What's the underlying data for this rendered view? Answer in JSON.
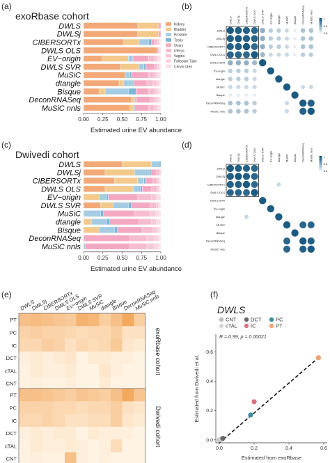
{
  "panels": {
    "a": {
      "letter": "(a)",
      "title": "exoRbase cohort"
    },
    "b": {
      "letter": "(b)"
    },
    "c": {
      "letter": "(c)",
      "title": "Dwivedi cohort"
    },
    "d": {
      "letter": "(d)"
    },
    "e": {
      "letter": "(e)"
    },
    "f": {
      "letter": "(f)"
    }
  },
  "colors": {
    "Kidney": "#f2a977",
    "Bladder": "#f3c98c",
    "Prostate": "#a6cce3",
    "Testis": "#7ab6d9",
    "Ovary": "#f4a9c2",
    "Uterus": "#f6bcd0",
    "Vagina": "#f7c8d8",
    "Fallopian Tube": "#f9d3e0",
    "Cervix Uteri": "#fbdde8",
    "corr_dark": "#1d5a80",
    "corr_light": "#e4eef5"
  },
  "chart_data": [
    {
      "panel": "a",
      "type": "bar",
      "stacked": "horizontal",
      "title": "exoRbase cohort",
      "xlabel": "Estimated urine EV abundance",
      "x_ticks": [
        "0.00",
        "0.25",
        "0.50",
        "0.75",
        "1.00"
      ],
      "xlim": [
        0,
        1
      ],
      "categories": [
        "DWLS",
        "DWLSj",
        "CIBERSORTx",
        "DWLS OLS",
        "EV−origin",
        "DWLS SVR",
        "MuSiC",
        "dtangle",
        "Bisque",
        "DeconRNASeq",
        "MuSiC nnls"
      ],
      "legend": [
        "Kidney",
        "Bladder",
        "Prostate",
        "Testis",
        "Ovary",
        "Uterus",
        "Vagina",
        "Fallopian Tube",
        "Cervix Uteri"
      ],
      "series": [
        {
          "name": "Kidney",
          "values": [
            0.7,
            0.7,
            0.52,
            0.95,
            0.24,
            0.48,
            0.54,
            0.46,
            0.2,
            0.62,
            0.6
          ]
        },
        {
          "name": "Bladder",
          "values": [
            0.27,
            0.27,
            0.2,
            0.0,
            0.34,
            0.24,
            0.0,
            0.06,
            0.08,
            0.04,
            0.04
          ]
        },
        {
          "name": "Prostate",
          "values": [
            0.0,
            0.0,
            0.12,
            0.0,
            0.06,
            0.06,
            0.06,
            0.1,
            0.3,
            0.02,
            0.02
          ]
        },
        {
          "name": "Testis",
          "values": [
            0.0,
            0.0,
            0.04,
            0.0,
            0.0,
            0.02,
            0.02,
            0.02,
            0.1,
            0.0,
            0.0
          ]
        },
        {
          "name": "Ovary",
          "values": [
            0.03,
            0.03,
            0.04,
            0.02,
            0.2,
            0.12,
            0.22,
            0.18,
            0.16,
            0.18,
            0.18
          ]
        },
        {
          "name": "Uterus",
          "values": [
            0.0,
            0.0,
            0.04,
            0.01,
            0.08,
            0.04,
            0.08,
            0.08,
            0.08,
            0.06,
            0.08
          ]
        },
        {
          "name": "Vagina",
          "values": [
            0.0,
            0.0,
            0.02,
            0.01,
            0.04,
            0.02,
            0.04,
            0.05,
            0.04,
            0.04,
            0.04
          ]
        },
        {
          "name": "Fallopian Tube",
          "values": [
            0.0,
            0.0,
            0.01,
            0.01,
            0.02,
            0.01,
            0.02,
            0.03,
            0.02,
            0.02,
            0.02
          ]
        },
        {
          "name": "Cervix Uteri",
          "values": [
            0.0,
            0.0,
            0.01,
            0.0,
            0.02,
            0.01,
            0.02,
            0.02,
            0.02,
            0.02,
            0.02
          ]
        }
      ]
    },
    {
      "panel": "c",
      "type": "bar",
      "stacked": "horizontal",
      "title": "Dwivedi cohort",
      "xlabel": "Estimated urine EV abundance",
      "x_ticks": [
        "0.00",
        "0.25",
        "0.50",
        "0.75",
        "1.00"
      ],
      "xlim": [
        0,
        1
      ],
      "categories": [
        "DWLS",
        "DWLSj",
        "CIBERSORTx",
        "DWLS OLS",
        "EV−origin",
        "DWLS SVR",
        "MuSiC",
        "dtangle",
        "Bisque",
        "DeconRNASeq",
        "MuSiC nnls"
      ],
      "series": [
        {
          "name": "Kidney",
          "values": [
            0.5,
            0.28,
            0.4,
            0.28,
            0.0,
            0.22,
            0.0,
            0.0,
            0.0,
            0.0,
            0.0
          ]
        },
        {
          "name": "Bladder",
          "values": [
            0.38,
            0.38,
            0.3,
            0.36,
            0.2,
            0.16,
            0.0,
            0.1,
            0.2,
            0.0,
            0.0
          ]
        },
        {
          "name": "Prostate",
          "values": [
            0.1,
            0.2,
            0.08,
            0.1,
            0.1,
            0.2,
            0.22,
            0.2,
            0.2,
            0.0,
            0.02
          ]
        },
        {
          "name": "Testis",
          "values": [
            0.02,
            0.02,
            0.02,
            0.02,
            0.02,
            0.04,
            0.04,
            0.04,
            0.04,
            0.0,
            0.0
          ]
        },
        {
          "name": "Ovary",
          "values": [
            0.0,
            0.06,
            0.1,
            0.12,
            0.38,
            0.24,
            0.4,
            0.38,
            0.32,
            0.6,
            0.58
          ]
        },
        {
          "name": "Uterus",
          "values": [
            0.0,
            0.04,
            0.06,
            0.08,
            0.18,
            0.08,
            0.2,
            0.16,
            0.14,
            0.22,
            0.22
          ]
        },
        {
          "name": "Vagina",
          "values": [
            0.0,
            0.02,
            0.02,
            0.02,
            0.06,
            0.03,
            0.07,
            0.06,
            0.05,
            0.1,
            0.1
          ]
        },
        {
          "name": "Fallopian Tube",
          "values": [
            0.0,
            0.0,
            0.01,
            0.01,
            0.03,
            0.02,
            0.04,
            0.03,
            0.03,
            0.05,
            0.05
          ]
        },
        {
          "name": "Cervix Uteri",
          "values": [
            0.0,
            0.0,
            0.01,
            0.01,
            0.03,
            0.01,
            0.03,
            0.03,
            0.02,
            0.03,
            0.03
          ]
        }
      ]
    },
    {
      "panel": "b",
      "type": "heatmap",
      "labels": [
        "DWLS",
        "DWLSj",
        "CIBERSORTx",
        "DWLS OLS",
        "DWLS SVR",
        "EV-origin",
        "dtangle",
        "MuSiC",
        "Bisque",
        "DeconRNASeq",
        "MuSiC nnls"
      ],
      "scale_ticks": [
        "1",
        "0.8",
        "0.6"
      ],
      "values": [
        [
          1.0,
          0.98,
          0.97,
          0.95,
          0.6,
          0.45,
          0.45,
          0.4,
          0.25,
          0.5,
          0.5
        ],
        [
          0.98,
          1.0,
          0.97,
          0.95,
          0.6,
          0.45,
          0.45,
          0.4,
          0.25,
          0.5,
          0.5
        ],
        [
          0.97,
          0.97,
          1.0,
          0.93,
          0.6,
          0.45,
          0.45,
          0.4,
          0.2,
          0.5,
          0.5
        ],
        [
          0.95,
          0.95,
          0.93,
          1.0,
          0.55,
          0.4,
          0.4,
          0.4,
          0.2,
          0.45,
          0.45
        ],
        [
          0.6,
          0.6,
          0.6,
          0.55,
          1.0,
          0.0,
          0.0,
          0.0,
          0.0,
          0.0,
          0.0
        ],
        [
          0.45,
          0.45,
          0.45,
          0.4,
          0.0,
          1.0,
          0.0,
          0.0,
          0.0,
          0.0,
          0.0
        ],
        [
          0.45,
          0.45,
          0.45,
          0.4,
          0.0,
          0.0,
          1.0,
          0.0,
          0.0,
          0.0,
          0.0
        ],
        [
          0.4,
          0.4,
          0.4,
          0.4,
          0.0,
          0.0,
          0.0,
          1.0,
          0.0,
          0.4,
          0.4
        ],
        [
          0.25,
          0.25,
          0.2,
          0.2,
          0.0,
          0.0,
          0.0,
          0.0,
          1.0,
          0.0,
          0.0
        ],
        [
          0.5,
          0.5,
          0.5,
          0.45,
          0.0,
          0.0,
          0.0,
          0.4,
          0.0,
          1.0,
          0.97
        ],
        [
          0.5,
          0.5,
          0.5,
          0.45,
          0.0,
          0.0,
          0.0,
          0.4,
          0.0,
          0.97,
          1.0
        ]
      ]
    },
    {
      "panel": "d",
      "type": "heatmap",
      "labels": [
        "DWLS",
        "DWLSj",
        "CIBERSORTx",
        "DWLS OLS",
        "DWLS SVR",
        "EV-origin",
        "dtangle",
        "MuSiC",
        "Bisque",
        "DeconRNASeq",
        "MuSiC nnls"
      ],
      "scale_ticks": [
        "1",
        "0.8",
        "0.6"
      ],
      "values": [
        [
          1.0,
          0.98,
          0.97,
          0.95,
          0.0,
          0.0,
          0.0,
          0.0,
          0.0,
          0.0,
          0.0
        ],
        [
          0.98,
          1.0,
          0.97,
          0.95,
          0.0,
          0.0,
          0.0,
          0.0,
          0.0,
          0.0,
          0.0
        ],
        [
          0.97,
          0.97,
          1.0,
          0.93,
          0.0,
          0.0,
          0.4,
          0.0,
          0.0,
          0.0,
          0.0
        ],
        [
          0.95,
          0.95,
          0.93,
          1.0,
          0.0,
          0.0,
          0.0,
          0.0,
          0.0,
          0.0,
          0.0
        ],
        [
          0.0,
          0.0,
          0.0,
          0.0,
          1.0,
          0.0,
          0.0,
          0.0,
          0.0,
          0.0,
          0.0
        ],
        [
          0.0,
          0.0,
          0.0,
          0.0,
          0.0,
          1.0,
          0.0,
          0.0,
          0.0,
          0.0,
          0.0
        ],
        [
          0.0,
          0.0,
          0.4,
          0.0,
          0.0,
          0.0,
          1.0,
          0.0,
          0.0,
          0.0,
          0.0
        ],
        [
          0.0,
          0.0,
          0.0,
          0.0,
          0.0,
          0.0,
          0.0,
          1.0,
          0.0,
          0.95,
          0.95
        ],
        [
          0.0,
          0.0,
          0.0,
          0.0,
          0.0,
          0.0,
          0.0,
          0.0,
          1.0,
          0.0,
          0.0
        ],
        [
          0.0,
          0.0,
          0.0,
          0.0,
          0.0,
          0.0,
          0.0,
          0.95,
          0.0,
          1.0,
          0.97
        ],
        [
          0.0,
          0.0,
          0.0,
          0.0,
          0.0,
          0.0,
          0.0,
          0.95,
          0.0,
          0.97,
          1.0
        ]
      ]
    },
    {
      "panel": "e",
      "type": "heatmap",
      "columns": [
        "DWLS",
        "DWLSj",
        "CIBERSORTx",
        "DWLS OLS",
        "EV−origin",
        "DWLS SVR",
        "MuSiC",
        "dtangle",
        "Bisque",
        "DeconRNASeq",
        "MuSiC nnls"
      ],
      "rows": [
        "PT",
        "PC",
        "IC",
        "DCT",
        "cTAL",
        "CNT"
      ],
      "groups": [
        {
          "name": "exoRbase cohort",
          "values": [
            [
              0.55,
              0.6,
              0.55,
              0.5,
              0.45,
              0.7,
              0.65,
              0.4,
              0.55,
              0.8,
              0.4
            ],
            [
              0.35,
              0.4,
              0.35,
              0.35,
              0.3,
              0.25,
              0.3,
              0.3,
              0.4,
              0.2,
              0.2
            ],
            [
              0.3,
              0.3,
              0.4,
              0.35,
              0.2,
              0.3,
              0.25,
              0.3,
              0.45,
              0.15,
              0.1
            ],
            [
              0.05,
              0.1,
              0.05,
              0.1,
              0.15,
              0.0,
              0.1,
              0.1,
              0.05,
              0.05,
              0.0
            ],
            [
              0.02,
              0.1,
              0.05,
              0.05,
              0.1,
              0.0,
              0.0,
              0.15,
              0.05,
              0.0,
              0.0
            ],
            [
              0.02,
              0.05,
              0.02,
              0.02,
              0.05,
              0.0,
              0.0,
              0.1,
              0.0,
              0.0,
              0.0
            ]
          ]
        },
        {
          "name": "Dwivedi cohort",
          "values": [
            [
              0.55,
              0.55,
              0.5,
              0.45,
              0.4,
              0.5,
              0.45,
              0.4,
              0.55,
              0.8,
              0.5
            ],
            [
              0.35,
              0.35,
              0.35,
              0.3,
              0.3,
              0.25,
              0.3,
              0.3,
              0.4,
              0.2,
              0.15
            ],
            [
              0.3,
              0.3,
              0.35,
              0.3,
              0.2,
              0.2,
              0.25,
              0.25,
              0.4,
              0.15,
              0.1
            ],
            [
              0.05,
              0.1,
              0.05,
              0.1,
              0.1,
              0.0,
              0.1,
              0.05,
              0.05,
              0.05,
              0.0
            ],
            [
              0.02,
              0.1,
              0.05,
              0.05,
              0.1,
              0.05,
              0.0,
              0.05,
              0.25,
              0.0,
              0.0
            ],
            [
              0.02,
              0.05,
              0.02,
              0.02,
              0.55,
              0.05,
              0.0,
              0.05,
              0.0,
              0.0,
              0.0
            ]
          ]
        }
      ]
    },
    {
      "panel": "f",
      "type": "scatter",
      "title": "DWLS",
      "xlabel": "Estimated from exoRbase",
      "ylabel": "Estimated from Dwivedi et al.",
      "annotation": "R = 0.99, p = 0.00021",
      "x_ticks": [
        "0.0",
        "0.2",
        "0.4",
        "0.6"
      ],
      "y_ticks": [
        "0.0",
        "0.2",
        "0.4",
        "0.6"
      ],
      "xlim": [
        -0.02,
        0.62
      ],
      "ylim": [
        -0.02,
        0.72
      ],
      "legend": [
        {
          "name": "CNT",
          "color": "#bdbdbd"
        },
        {
          "name": "DCT",
          "color": "#666666"
        },
        {
          "name": "PC",
          "color": "#3a8d9c"
        },
        {
          "name": "cTAL",
          "color": "#d6d6d6"
        },
        {
          "name": "IC",
          "color": "#e0707e"
        },
        {
          "name": "PT",
          "color": "#f0a36a"
        }
      ],
      "points": [
        {
          "name": "CNT",
          "x": 0.0,
          "y": 0.0
        },
        {
          "name": "cTAL",
          "x": 0.01,
          "y": 0.005
        },
        {
          "name": "DCT",
          "x": 0.02,
          "y": 0.01
        },
        {
          "name": "PC",
          "x": 0.18,
          "y": 0.17
        },
        {
          "name": "IC",
          "x": 0.2,
          "y": 0.26
        },
        {
          "name": "PT",
          "x": 0.57,
          "y": 0.56
        }
      ],
      "fit_line": [
        [
          0.0,
          -0.02
        ],
        [
          0.58,
          0.57
        ]
      ]
    }
  ]
}
